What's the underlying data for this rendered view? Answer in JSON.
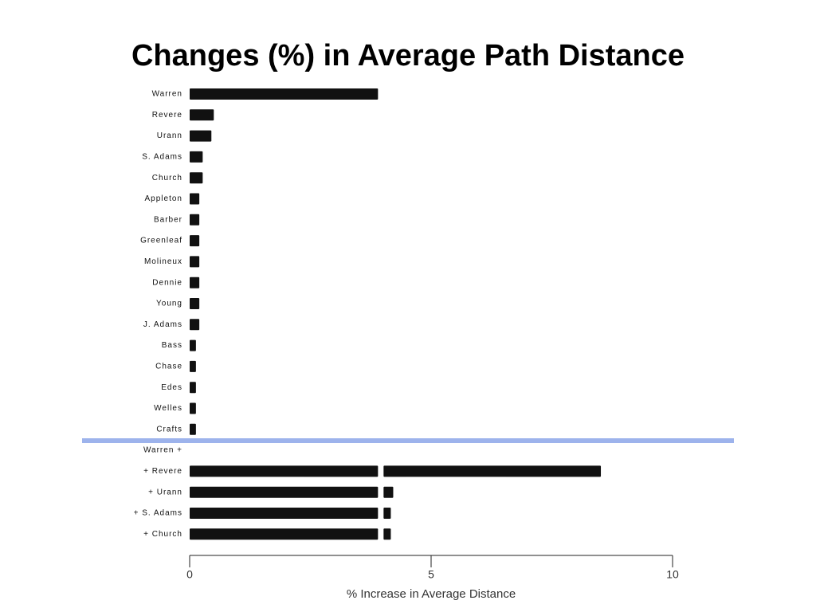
{
  "chart_data": {
    "type": "stacked-barh",
    "title": "Changes (%) in Average Path Distance",
    "x_label": "% Increase in Average Distance",
    "categories": [
      "Warren",
      "Revere",
      "Urann",
      "S. Adams",
      "Church",
      "Appleton",
      "Barber",
      "Greenleaf",
      "Molineux",
      "Dennie",
      "Young",
      "J. Adams",
      "Bass",
      "Chase",
      "Edes",
      "Welles",
      "Crafts",
      "Warren +",
      "+ Revere",
      "+ Urann",
      "+ S. Adams",
      "+ Church"
    ],
    "series": [
      {
        "color": "#111111",
        "values": [
          3.9,
          0.5,
          0.45,
          0.27,
          0.27,
          0.2,
          0.2,
          0.2,
          0.2,
          0.2,
          0.2,
          0.2,
          0.13,
          0.13,
          0.13,
          0.13,
          0.13,
          null,
          3.9,
          3.9,
          3.9,
          3.9
        ]
      },
      {
        "color": "#111111",
        "values": [
          null,
          null,
          null,
          null,
          null,
          null,
          null,
          null,
          null,
          null,
          null,
          null,
          null,
          null,
          null,
          null,
          null,
          null,
          4.5,
          0.2,
          0.15,
          0.15
        ]
      }
    ],
    "xlim": [
      0,
      10
    ],
    "xticks": [
      0,
      5,
      10
    ]
  }
}
